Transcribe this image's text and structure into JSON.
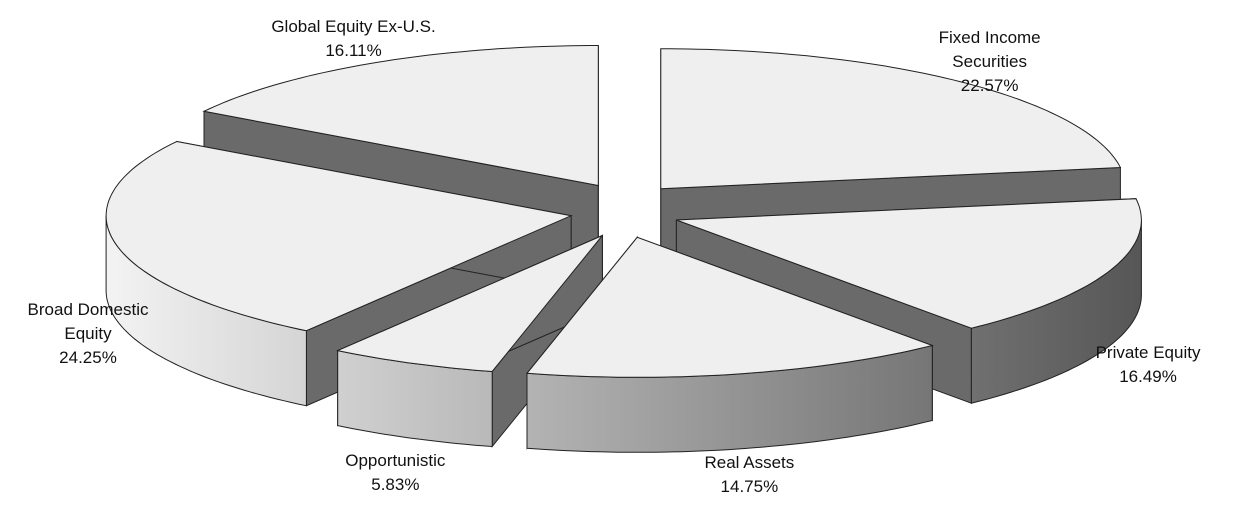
{
  "chart_data": {
    "type": "pie",
    "categories": [
      "Fixed Income Securities",
      "Private Equity",
      "Real Assets",
      "Opportunistic",
      "Broad Domestic Equity",
      "Global Equity Ex-U.S."
    ],
    "values": [
      22.57,
      16.49,
      14.75,
      5.83,
      24.25,
      16.11
    ],
    "value_labels": [
      "22.57%",
      "16.49%",
      "14.75%",
      "5.83%",
      "24.25%",
      "16.11%"
    ],
    "color": "#efefef"
  }
}
